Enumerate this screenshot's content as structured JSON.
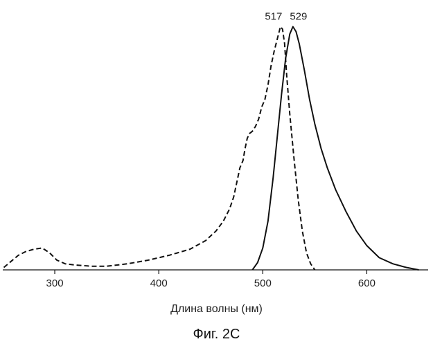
{
  "chart_data": {
    "type": "line",
    "title": "",
    "xlabel": "Длина волны (нм)",
    "ylabel": "",
    "xlim": [
      250,
      655
    ],
    "ylim": [
      0,
      1.03
    ],
    "xticks": [
      300,
      400,
      500,
      600
    ],
    "grid": false,
    "legend": "none",
    "caption": "Фиг. 2С",
    "peak_labels": [
      {
        "text": "517",
        "x": 517,
        "y": 1.0
      },
      {
        "text": "529",
        "x": 529,
        "y": 1.0
      }
    ],
    "series": [
      {
        "style": "dashed",
        "color": "#111111",
        "x": [
          251,
          258,
          265,
          272,
          280,
          288,
          295,
          302,
          310,
          320,
          335,
          350,
          370,
          390,
          410,
          430,
          445,
          455,
          462,
          468,
          472,
          475,
          478,
          481,
          483,
          485,
          487,
          490,
          493,
          496,
          499,
          502,
          505,
          508,
          511,
          514,
          517,
          519,
          521,
          523,
          526,
          530,
          534,
          538,
          542,
          546,
          550
        ],
        "y": [
          0.01,
          0.035,
          0.06,
          0.075,
          0.085,
          0.09,
          0.07,
          0.04,
          0.025,
          0.02,
          0.015,
          0.015,
          0.025,
          0.04,
          0.06,
          0.085,
          0.12,
          0.16,
          0.2,
          0.25,
          0.3,
          0.36,
          0.42,
          0.45,
          0.5,
          0.54,
          0.56,
          0.57,
          0.59,
          0.62,
          0.67,
          0.7,
          0.76,
          0.84,
          0.9,
          0.95,
          1.0,
          0.99,
          0.93,
          0.8,
          0.64,
          0.46,
          0.29,
          0.16,
          0.07,
          0.025,
          0.0
        ]
      },
      {
        "style": "solid",
        "color": "#111111",
        "x": [
          490,
          495,
          500,
          505,
          510,
          514,
          518,
          522,
          526,
          529,
          532,
          535,
          540,
          545,
          550,
          556,
          562,
          570,
          580,
          590,
          600,
          612,
          625,
          638,
          650
        ],
        "y": [
          0.0,
          0.03,
          0.09,
          0.2,
          0.38,
          0.55,
          0.72,
          0.87,
          0.97,
          1.0,
          0.98,
          0.93,
          0.82,
          0.7,
          0.6,
          0.5,
          0.42,
          0.33,
          0.24,
          0.16,
          0.1,
          0.05,
          0.025,
          0.01,
          0.0
        ]
      }
    ]
  }
}
